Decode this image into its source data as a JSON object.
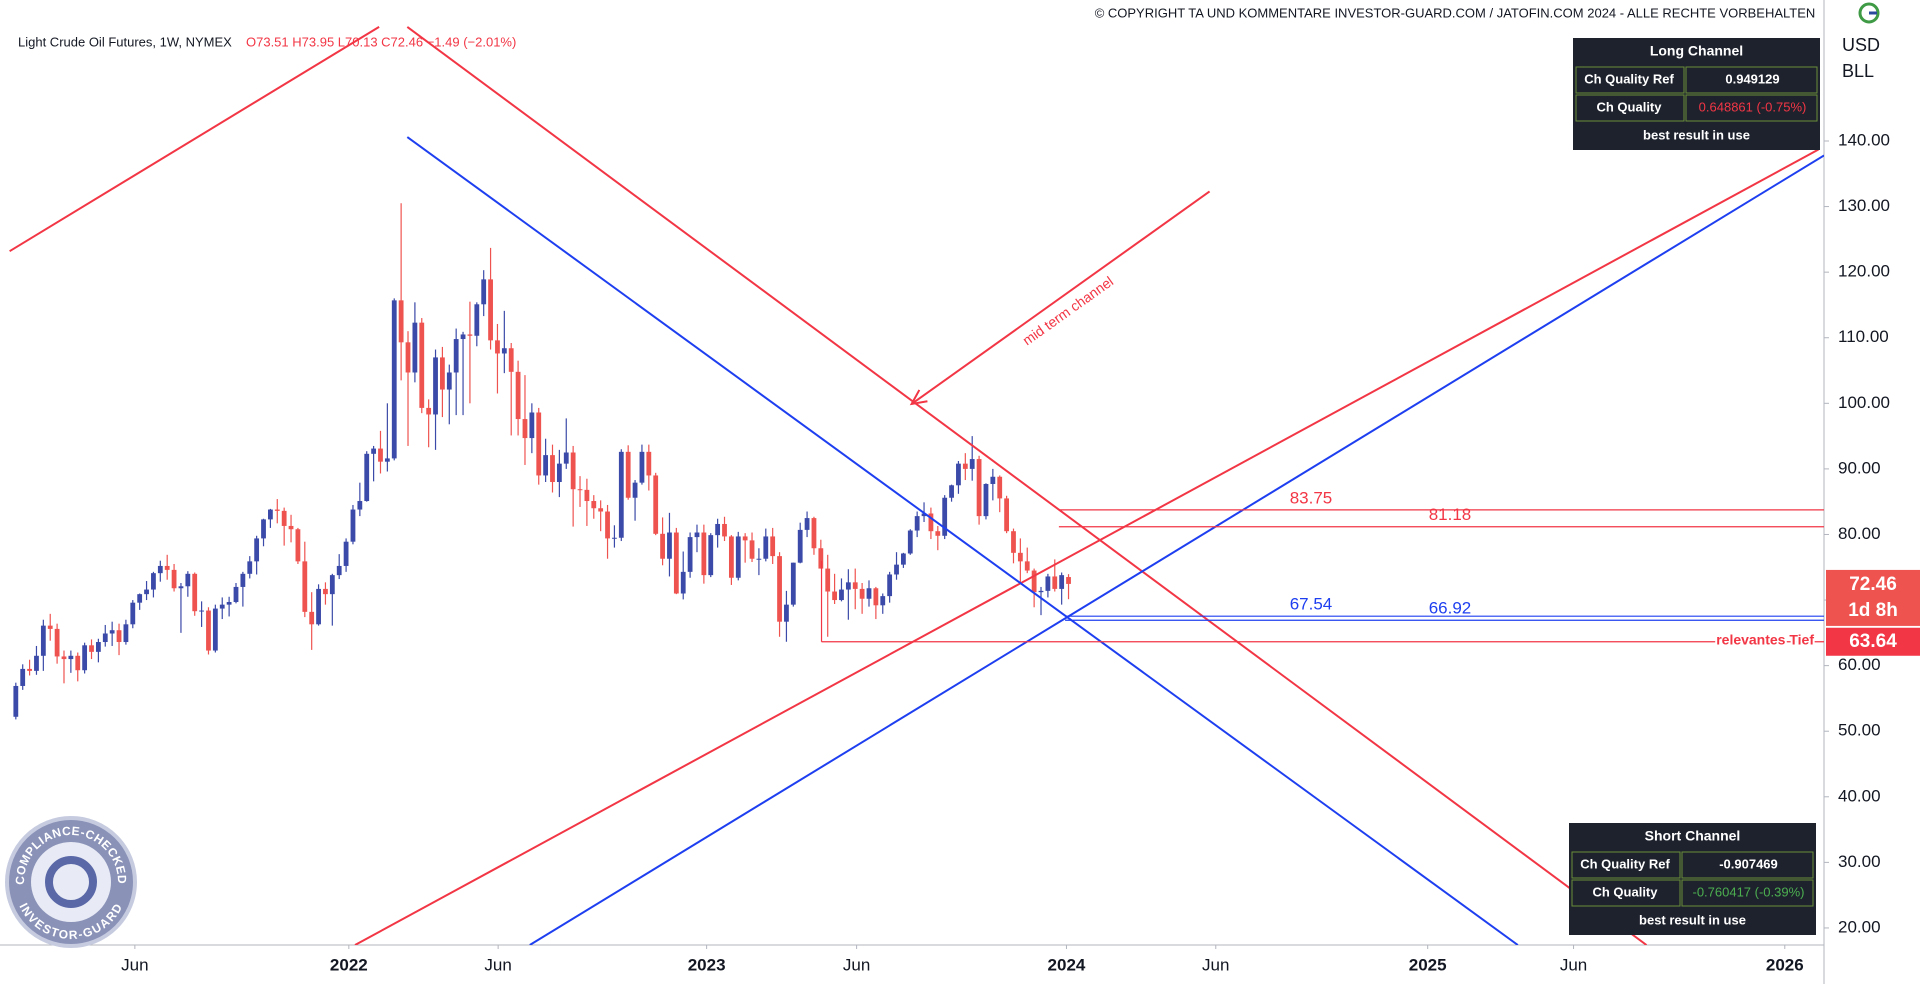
{
  "chart_data": {
    "type": "candlestick",
    "symbol": "Light Crude Oil Futures, 1W, NYMEX",
    "quote": "O73.51 H73.95 L70.13 C72.46 −1.49 (−2.01%)",
    "copyright": "© COPYRIGHT TA UND KOMMENTARE INVESTOR-GUARD.COM / JATOFIN.COM 2024 - ALLE RECHTE VORBEHALTEN",
    "currency": "USD",
    "unit": "BLL",
    "countdown": "1d 8h",
    "badge": {
      "top": "COMPLIANCE-CHECKED",
      "bottom": "INVESTOR-GUARD"
    },
    "up_color": "#3b4aa8",
    "down_color": "#ef5350",
    "grid": false,
    "xlim": [
      -2.3,
      262.8
    ],
    "ylim": [
      17.4,
      161.5
    ],
    "xticks": [
      {
        "value": 17.3,
        "label": "Jun"
      },
      {
        "value": 48.4,
        "label": "2022"
      },
      {
        "value": 70.1,
        "label": "Jun"
      },
      {
        "value": 100.4,
        "label": "2023"
      },
      {
        "value": 122.2,
        "label": "Jun"
      },
      {
        "value": 152.7,
        "label": "2024"
      },
      {
        "value": 174.4,
        "label": "Jun"
      },
      {
        "value": 205.2,
        "label": "2025"
      },
      {
        "value": 226.4,
        "label": "Jun"
      },
      {
        "value": 257.1,
        "label": "2026"
      }
    ],
    "yticks": [
      {
        "value": 20,
        "label": "20.00"
      },
      {
        "value": 30,
        "label": "30.00"
      },
      {
        "value": 40,
        "label": "40.00"
      },
      {
        "value": 50,
        "label": "50.00"
      },
      {
        "value": 60,
        "label": "60.00"
      },
      {
        "value": 70,
        "label": "70.00"
      },
      {
        "value": 80,
        "label": "80.00"
      },
      {
        "value": 90,
        "label": "90.00"
      },
      {
        "value": 100,
        "label": "100.00"
      },
      {
        "value": 110,
        "label": "110.00"
      },
      {
        "value": 120,
        "label": "120.00"
      },
      {
        "value": 130,
        "label": "130.00"
      },
      {
        "value": 140,
        "label": "140.00"
      }
    ],
    "ohlc": [
      [
        52.2,
        57.4,
        51.8,
        56.9
      ],
      [
        56.9,
        60.2,
        56.3,
        59.5
      ],
      [
        59.5,
        60.9,
        58.5,
        59.2
      ],
      [
        59.2,
        63.0,
        58.6,
        61.5
      ],
      [
        61.5,
        67.0,
        59.2,
        66.1
      ],
      [
        66.1,
        67.9,
        63.8,
        65.6
      ],
      [
        65.6,
        66.4,
        60.3,
        61.4
      ],
      [
        61.4,
        62.3,
        57.3,
        61.0
      ],
      [
        61.0,
        62.3,
        58.9,
        61.5
      ],
      [
        61.5,
        62.0,
        57.6,
        59.3
      ],
      [
        59.3,
        63.5,
        58.8,
        63.1
      ],
      [
        63.1,
        64.0,
        61.0,
        62.1
      ],
      [
        62.1,
        64.1,
        60.5,
        63.6
      ],
      [
        63.6,
        66.2,
        62.9,
        64.9
      ],
      [
        64.9,
        66.7,
        63.0,
        65.4
      ],
      [
        65.4,
        66.4,
        61.6,
        63.6
      ],
      [
        63.6,
        67.0,
        63.2,
        66.3
      ],
      [
        66.3,
        70.0,
        65.7,
        69.6
      ],
      [
        69.6,
        71.0,
        68.5,
        70.9
      ],
      [
        70.9,
        72.9,
        70.0,
        71.6
      ],
      [
        71.6,
        74.3,
        70.4,
        74.1
      ],
      [
        74.1,
        76.0,
        72.8,
        75.2
      ],
      [
        75.2,
        76.9,
        73.1,
        74.6
      ],
      [
        74.6,
        75.5,
        71.3,
        71.8
      ],
      [
        71.8,
        72.6,
        65.0,
        72.1
      ],
      [
        72.1,
        74.4,
        70.5,
        74.0
      ],
      [
        74.0,
        74.2,
        67.6,
        68.3
      ],
      [
        68.3,
        69.8,
        65.9,
        68.4
      ],
      [
        68.4,
        68.9,
        61.7,
        62.3
      ],
      [
        62.3,
        69.3,
        62.0,
        68.7
      ],
      [
        68.7,
        70.4,
        67.1,
        69.3
      ],
      [
        69.3,
        70.5,
        67.5,
        69.7
      ],
      [
        69.7,
        72.6,
        69.5,
        72.0
      ],
      [
        72.0,
        74.3,
        69.0,
        74.0
      ],
      [
        74.0,
        76.7,
        73.3,
        75.9
      ],
      [
        75.9,
        79.8,
        73.9,
        79.4
      ],
      [
        79.4,
        82.4,
        78.2,
        82.3
      ],
      [
        82.3,
        83.9,
        81.0,
        83.8
      ],
      [
        83.8,
        85.4,
        81.7,
        83.6
      ],
      [
        83.6,
        84.1,
        78.3,
        81.3
      ],
      [
        81.3,
        83.0,
        78.8,
        80.8
      ],
      [
        80.8,
        81.0,
        75.5,
        75.9
      ],
      [
        75.9,
        78.9,
        67.4,
        68.2
      ],
      [
        68.2,
        71.2,
        62.4,
        66.3
      ],
      [
        66.3,
        72.4,
        66.1,
        71.7
      ],
      [
        71.7,
        72.7,
        69.3,
        70.9
      ],
      [
        70.9,
        74.0,
        66.1,
        73.8
      ],
      [
        73.8,
        77.0,
        73.2,
        75.2
      ],
      [
        75.2,
        79.4,
        74.3,
        78.9
      ],
      [
        78.9,
        84.5,
        78.5,
        83.8
      ],
      [
        83.8,
        87.9,
        82.8,
        85.1
      ],
      [
        85.1,
        92.7,
        85.0,
        92.3
      ],
      [
        92.3,
        93.5,
        88.1,
        93.1
      ],
      [
        93.1,
        95.8,
        89.3,
        91.1
      ],
      [
        91.1,
        100.0,
        89.6,
        91.6
      ],
      [
        91.6,
        116.0,
        91.3,
        115.7
      ],
      [
        115.7,
        130.5,
        103.5,
        109.3
      ],
      [
        109.3,
        111.0,
        93.5,
        104.7
      ],
      [
        104.7,
        115.4,
        103.2,
        112.3
      ],
      [
        112.3,
        113.0,
        98.5,
        99.3
      ],
      [
        99.3,
        100.6,
        93.3,
        98.3
      ],
      [
        98.3,
        108.2,
        92.9,
        107.0
      ],
      [
        107.0,
        108.6,
        97.9,
        102.1
      ],
      [
        102.1,
        105.9,
        96.8,
        104.7
      ],
      [
        104.7,
        111.4,
        98.2,
        109.8
      ],
      [
        109.8,
        110.9,
        98.2,
        110.5
      ],
      [
        110.5,
        115.5,
        100.0,
        110.3
      ],
      [
        110.3,
        115.4,
        108.7,
        115.1
      ],
      [
        115.1,
        120.3,
        113.3,
        118.9
      ],
      [
        118.9,
        123.7,
        108.2,
        109.6
      ],
      [
        109.6,
        112.1,
        101.5,
        107.6
      ],
      [
        107.6,
        114.1,
        104.6,
        108.4
      ],
      [
        108.4,
        109.2,
        95.1,
        104.8
      ],
      [
        104.8,
        106.5,
        95.1,
        97.6
      ],
      [
        97.6,
        104.3,
        90.6,
        94.7
      ],
      [
        94.7,
        100.0,
        92.4,
        98.6
      ],
      [
        98.6,
        99.3,
        87.6,
        89.0
      ],
      [
        89.0,
        94.6,
        88.0,
        92.1
      ],
      [
        92.1,
        93.7,
        86.4,
        88.0
      ],
      [
        88.0,
        92.9,
        85.7,
        90.8
      ],
      [
        90.8,
        97.7,
        90.0,
        92.5
      ],
      [
        92.5,
        93.5,
        81.2,
        86.9
      ],
      [
        86.9,
        88.9,
        84.2,
        86.8
      ],
      [
        86.8,
        88.5,
        81.3,
        85.1
      ],
      [
        85.1,
        86.0,
        82.4,
        84.0
      ],
      [
        84.0,
        85.2,
        80.5,
        83.5
      ],
      [
        83.5,
        84.5,
        76.3,
        79.4
      ],
      [
        79.4,
        81.4,
        78.0,
        79.5
      ],
      [
        79.5,
        93.0,
        79.0,
        92.6
      ],
      [
        92.6,
        93.6,
        85.3,
        85.6
      ],
      [
        85.6,
        88.3,
        82.1,
        87.9
      ],
      [
        87.9,
        93.7,
        87.6,
        92.6
      ],
      [
        92.6,
        93.7,
        86.7,
        89.0
      ],
      [
        89.0,
        89.4,
        79.9,
        80.1
      ],
      [
        80.1,
        82.6,
        75.3,
        76.3
      ],
      [
        76.3,
        83.3,
        73.6,
        80.3
      ],
      [
        80.3,
        81.0,
        70.9,
        71.0
      ],
      [
        71.0,
        77.4,
        70.1,
        74.3
      ],
      [
        74.3,
        80.3,
        73.4,
        79.6
      ],
      [
        79.6,
        81.5,
        77.3,
        80.3
      ],
      [
        80.3,
        81.5,
        72.5,
        73.8
      ],
      [
        73.8,
        80.2,
        73.5,
        79.9
      ],
      [
        79.9,
        82.4,
        78.0,
        81.6
      ],
      [
        81.6,
        82.7,
        79.0,
        79.7
      ],
      [
        79.7,
        79.9,
        72.3,
        73.4
      ],
      [
        73.4,
        80.4,
        73.0,
        79.7
      ],
      [
        79.7,
        80.2,
        75.7,
        79.1
      ],
      [
        79.1,
        80.3,
        75.8,
        76.3
      ],
      [
        76.3,
        77.9,
        73.8,
        76.3
      ],
      [
        76.3,
        80.9,
        75.9,
        79.7
      ],
      [
        79.7,
        81.0,
        75.5,
        76.7
      ],
      [
        76.7,
        77.3,
        64.4,
        66.7
      ],
      [
        66.7,
        71.4,
        63.64,
        69.3
      ],
      [
        69.3,
        75.7,
        69.0,
        75.7
      ],
      [
        75.7,
        81.8,
        75.6,
        80.7
      ],
      [
        80.7,
        83.5,
        79.6,
        82.5
      ],
      [
        82.5,
        82.7,
        76.9,
        77.9
      ],
      [
        77.9,
        79.2,
        74.8,
        74.8
      ],
      [
        74.8,
        76.9,
        64.4,
        71.3
      ],
      [
        71.3,
        74.0,
        69.4,
        70.0
      ],
      [
        70.0,
        73.3,
        69.8,
        71.6
      ],
      [
        71.6,
        74.7,
        67.0,
        72.7
      ],
      [
        72.7,
        74.8,
        68.6,
        71.7
      ],
      [
        71.7,
        72.6,
        67.9,
        70.2
      ],
      [
        70.2,
        73.0,
        69.0,
        71.8
      ],
      [
        71.8,
        72.0,
        67.1,
        69.2
      ],
      [
        69.2,
        71.0,
        67.9,
        70.6
      ],
      [
        70.6,
        74.3,
        69.6,
        73.9
      ],
      [
        73.9,
        77.3,
        73.1,
        75.4
      ],
      [
        75.4,
        77.2,
        74.9,
        77.1
      ],
      [
        77.1,
        80.8,
        76.9,
        80.6
      ],
      [
        80.6,
        83.5,
        79.6,
        82.8
      ],
      [
        82.8,
        84.9,
        81.9,
        83.2
      ],
      [
        83.2,
        84.1,
        79.3,
        80.5
      ],
      [
        80.5,
        81.3,
        77.6,
        79.8
      ],
      [
        79.8,
        86.0,
        79.3,
        85.6
      ],
      [
        85.6,
        87.6,
        85.0,
        87.5
      ],
      [
        87.5,
        91.2,
        86.2,
        90.8
      ],
      [
        90.8,
        92.4,
        88.3,
        90.0
      ],
      [
        90.0,
        95.0,
        88.2,
        91.5
      ],
      [
        91.5,
        92.0,
        81.5,
        82.8
      ],
      [
        82.8,
        87.8,
        82.3,
        87.7
      ],
      [
        87.7,
        90.0,
        85.2,
        88.8
      ],
      [
        88.8,
        89.0,
        83.4,
        85.5
      ],
      [
        85.5,
        85.9,
        80.2,
        80.5
      ],
      [
        80.5,
        80.9,
        75.6,
        77.2
      ],
      [
        77.2,
        79.4,
        72.4,
        75.9
      ],
      [
        75.9,
        78.0,
        74.1,
        74.5
      ],
      [
        74.5,
        74.8,
        68.9,
        71.2
      ],
      [
        71.2,
        72.0,
        67.7,
        71.4
      ],
      [
        71.4,
        74.0,
        70.4,
        73.6
      ],
      [
        73.6,
        76.2,
        71.3,
        71.7
      ],
      [
        71.7,
        74.2,
        69.3,
        73.8
      ],
      [
        73.51,
        73.95,
        70.13,
        72.46
      ]
    ],
    "trendlines": [
      {
        "color": "#f23645",
        "points": [
          [
            -0.9,
            123.2
          ],
          [
            52.8,
            157.4
          ]
        ]
      },
      {
        "color": "#f23645",
        "points": [
          [
            56.9,
            157.4
          ],
          [
            237.0,
            17.4
          ]
        ]
      },
      {
        "color": "#f23645",
        "points": [
          [
            49.3,
            17.4
          ],
          [
            262.0,
            138.7
          ]
        ]
      },
      {
        "color": "#1e3ff0",
        "points": [
          [
            56.9,
            140.6
          ],
          [
            218.3,
            17.4
          ]
        ]
      },
      {
        "color": "#1e3ff0",
        "points": [
          [
            74.7,
            17.4
          ],
          [
            262.8,
            137.8
          ]
        ]
      },
      {
        "color": "#f23645",
        "arrow": true,
        "label": "mid term channel",
        "points": [
          [
            173.5,
            132.3
          ],
          [
            130.2,
            99.9
          ]
        ]
      }
    ],
    "levels": [
      {
        "value": 83.75,
        "color": "#f23645",
        "x0": 151.6
      },
      {
        "value": 81.18,
        "color": "#f23645",
        "x0": 151.6
      },
      {
        "value": 67.54,
        "color": "#1e3ff0",
        "x0": 152.5
      },
      {
        "value": 66.92,
        "color": "#1e3ff0",
        "x0": 152.5
      },
      {
        "value": 63.64,
        "color": "#f23645",
        "x0": 117.1,
        "y0": 76.0,
        "name": "relevantes Tief"
      }
    ],
    "panels": [
      {
        "title": "Long Channel",
        "rows": [
          [
            "Ch Quality Ref",
            "0.949129"
          ],
          [
            "Ch Quality",
            "0.648861 (-0.75%)"
          ]
        ],
        "footer": "best result in use",
        "accent": "#f23645"
      },
      {
        "title": "Short Channel",
        "rows": [
          [
            "Ch Quality Ref",
            "-0.907469"
          ],
          [
            "Ch Quality",
            "-0.760417 (-0.39%)"
          ]
        ],
        "footer": "best result in use",
        "accent": "#4caf50"
      }
    ]
  }
}
